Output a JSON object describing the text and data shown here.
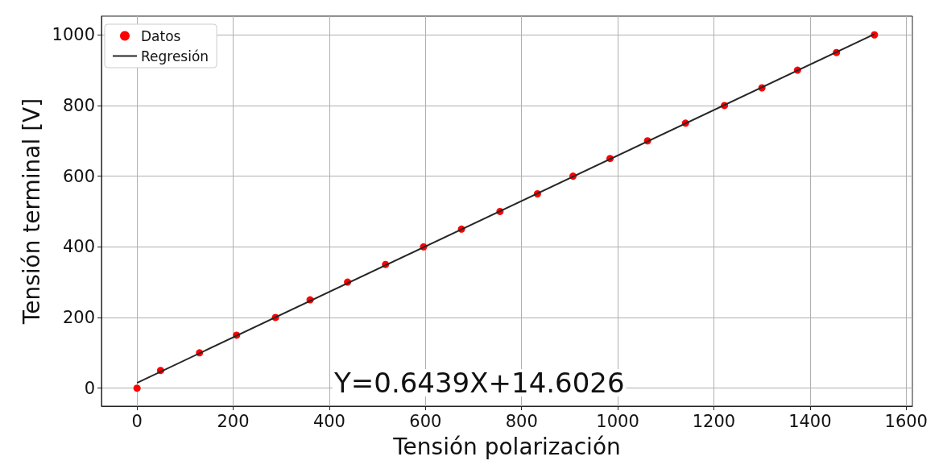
{
  "chart_data": {
    "type": "scatter",
    "xlabel": "Tensión polarización",
    "ylabel": "Tensión terminal [V]",
    "xlim": [
      -74,
      1613
    ],
    "ylim": [
      -51,
      1053
    ],
    "xticks": [
      0,
      200,
      400,
      600,
      800,
      1000,
      1200,
      1400,
      1600
    ],
    "yticks": [
      0,
      200,
      400,
      600,
      800,
      1000
    ],
    "grid": true,
    "legend": "top left",
    "marker": "circle",
    "series": [
      {
        "name": "Datos",
        "color": "#ff0000",
        "x": [
          0,
          49,
          130,
          207,
          288,
          360,
          438,
          517,
          596,
          675,
          755,
          833,
          907,
          984,
          1062,
          1141,
          1222,
          1300,
          1374,
          1455,
          1534
        ],
        "values": [
          0,
          50,
          100,
          150,
          200,
          250,
          300,
          350,
          400,
          450,
          500,
          550,
          600,
          650,
          700,
          750,
          800,
          850,
          900,
          950,
          1000
        ]
      },
      {
        "name": "Regresión",
        "type": "line",
        "color": "#262626",
        "marker": "none",
        "x": [
          0,
          1534
        ],
        "values": [
          15,
          1002
        ]
      }
    ],
    "annotations": [
      "Y=0.6439X+14.6026"
    ]
  }
}
